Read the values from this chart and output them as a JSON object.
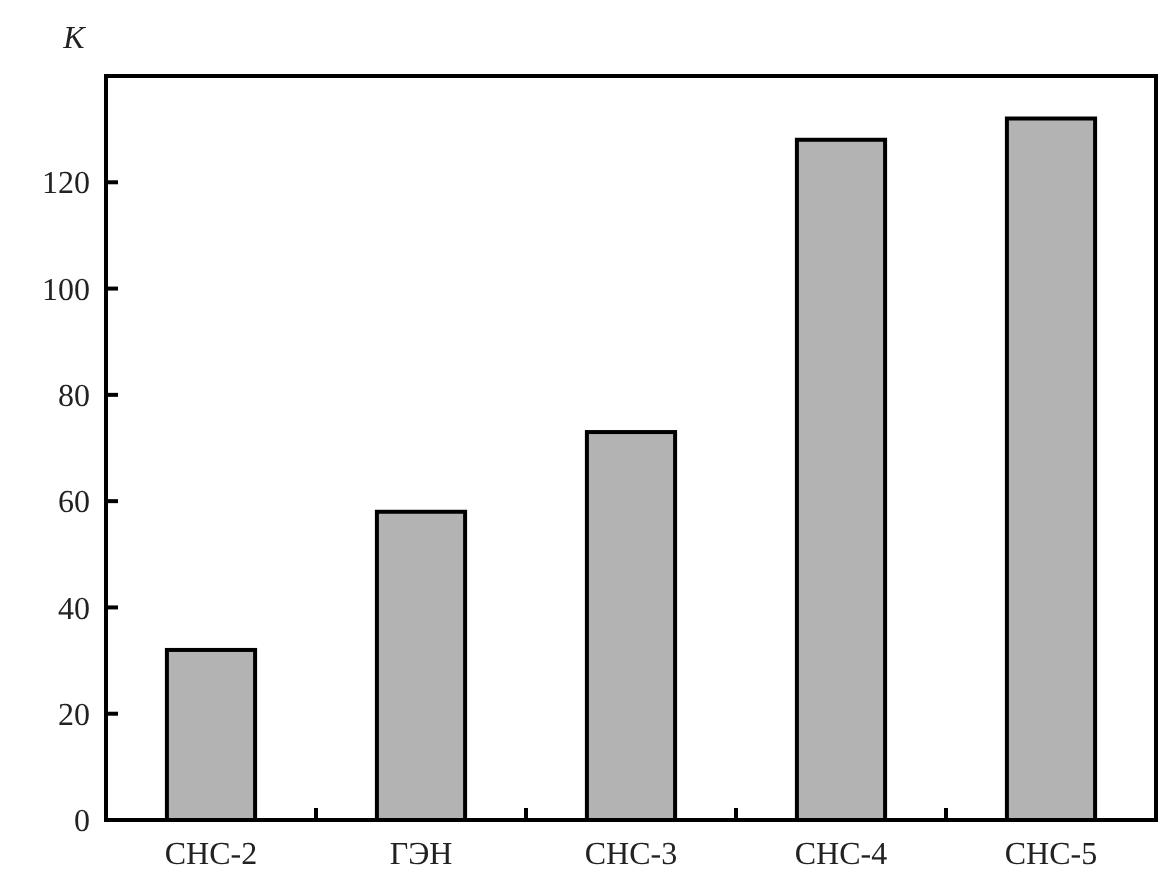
{
  "chart_data": {
    "type": "bar",
    "ylabel": "K",
    "categories": [
      "СНС-2",
      "ГЭН",
      "СНС-3",
      "СНС-4",
      "СНС-5"
    ],
    "values": [
      32,
      58,
      73,
      128,
      132
    ],
    "color": "#b3b3b3",
    "ylim": [
      0,
      140
    ],
    "yticks": [
      0,
      20,
      40,
      60,
      80,
      100,
      120
    ],
    "grid": false
  }
}
